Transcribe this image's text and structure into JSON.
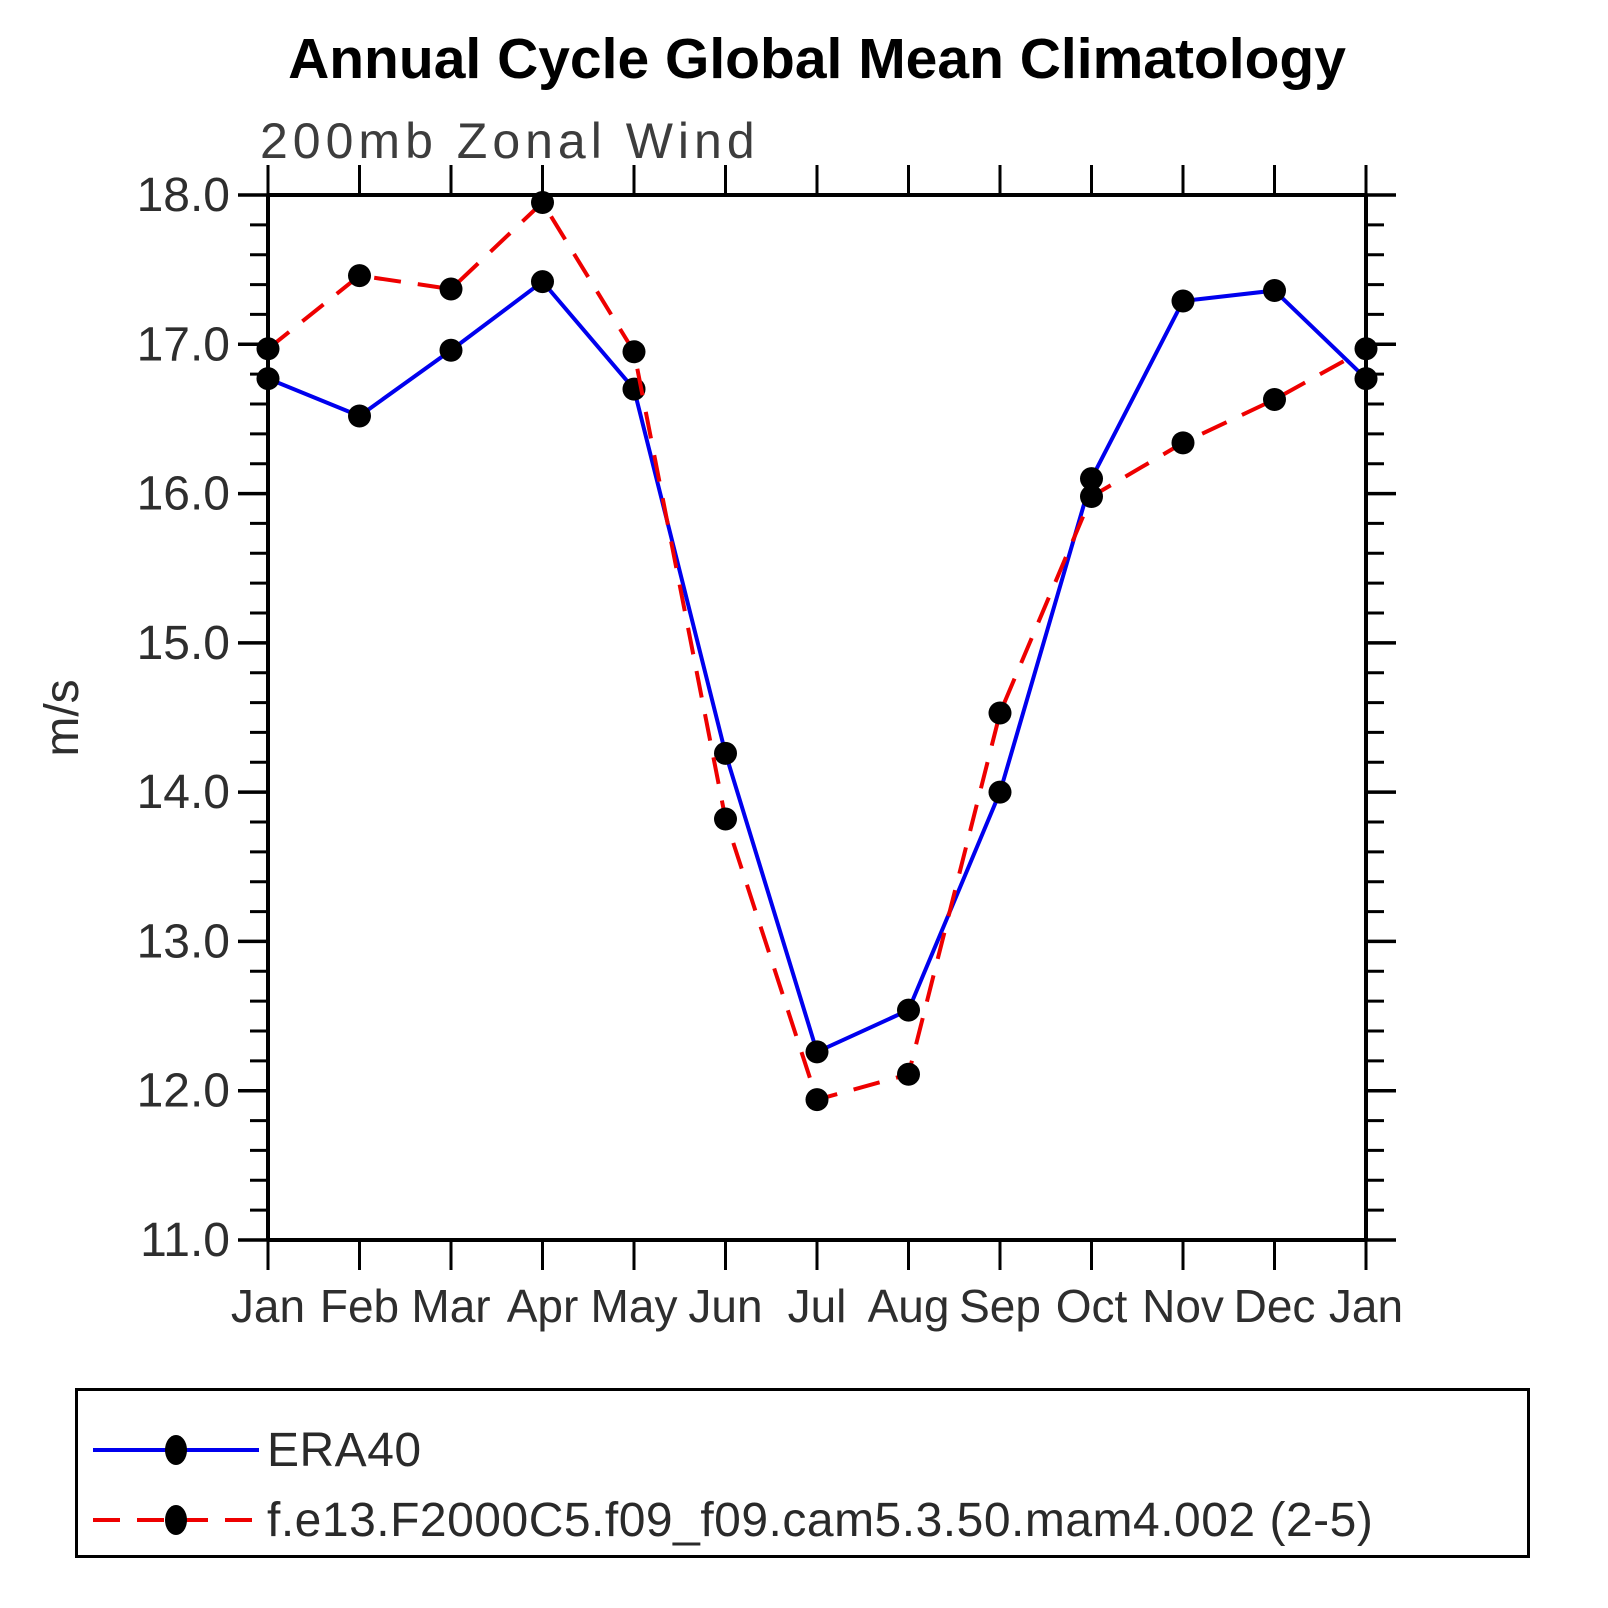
{
  "title": "Annual Cycle Global Mean Climatology",
  "subtitle": "200mb Zonal Wind",
  "colors": {
    "era40_line": "#0000ee",
    "model_line": "#ee0000",
    "marker": "#000000",
    "axis": "#000000",
    "tick_label": "#2e2e2e"
  },
  "chart_data": {
    "type": "line",
    "x_categories": [
      "Jan",
      "Feb",
      "Mar",
      "Apr",
      "May",
      "Jun",
      "Jul",
      "Aug",
      "Sep",
      "Oct",
      "Nov",
      "Dec",
      "Jan"
    ],
    "ylabel": "m/s",
    "ylim": [
      11.0,
      18.0
    ],
    "y_tick_labels": [
      "11.0",
      "12.0",
      "13.0",
      "14.0",
      "15.0",
      "16.0",
      "17.0",
      "18.0"
    ],
    "y_minor_step": 0.2,
    "grid": false,
    "legend_position": "bottom",
    "series": [
      {
        "name": "ERA40",
        "style": "solid",
        "color": "#0000ee",
        "marker": "filled-circle",
        "values": [
          16.77,
          16.52,
          16.96,
          17.42,
          16.7,
          14.26,
          12.26,
          12.54,
          14.0,
          16.1,
          17.29,
          17.36,
          16.77
        ]
      },
      {
        "name": "f.e13.F2000C5.f09_f09.cam5.3.50.mam4.002 (2-5)",
        "style": "dashed",
        "color": "#ee0000",
        "marker": "filled-circle",
        "values": [
          16.97,
          17.46,
          17.37,
          17.95,
          16.95,
          13.82,
          11.94,
          12.11,
          14.53,
          15.98,
          16.34,
          16.63,
          16.97
        ]
      }
    ]
  }
}
